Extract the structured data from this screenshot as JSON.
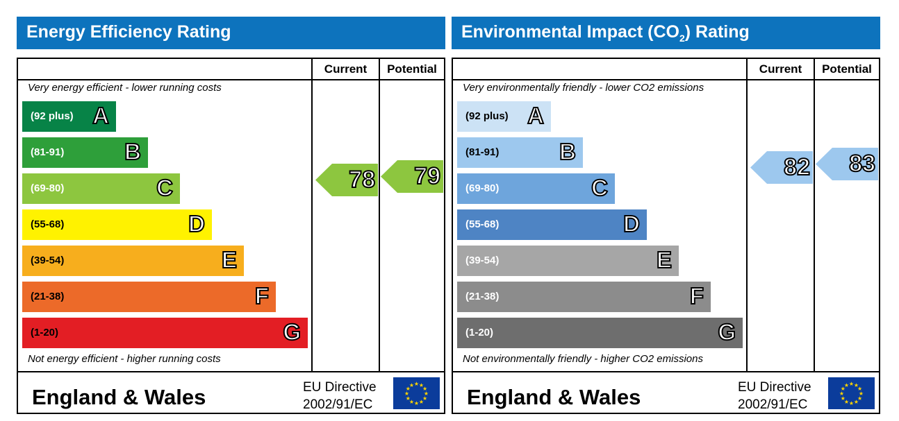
{
  "chart_data": [
    {
      "type": "bar",
      "title": "Energy Efficiency Rating",
      "columns": [
        "Current",
        "Potential"
      ],
      "top_note": "Very energy efficient - lower running costs",
      "bottom_note": "Not energy efficient - higher running costs",
      "bands": [
        {
          "range": "(92 plus)",
          "letter": "A",
          "color": "#078347"
        },
        {
          "range": "(81-91)",
          "letter": "B",
          "color": "#2e9f3a"
        },
        {
          "range": "(69-80)",
          "letter": "C",
          "color": "#8dc63f"
        },
        {
          "range": "(55-68)",
          "letter": "D",
          "color": "#fff200"
        },
        {
          "range": "(39-54)",
          "letter": "E",
          "color": "#f7ae1d"
        },
        {
          "range": "(21-38)",
          "letter": "F",
          "color": "#ec6a29"
        },
        {
          "range": "(1-20)",
          "letter": "G",
          "color": "#e31e24"
        }
      ],
      "current": 78,
      "potential": 79,
      "current_color": "#8dc63f",
      "potential_color": "#8dc63f",
      "country": "England & Wales",
      "directive": [
        "EU Directive",
        "2002/91/EC"
      ]
    },
    {
      "type": "bar",
      "title": "Environmental Impact (CO",
      "title_sub": "2",
      "title_end": ") Rating",
      "columns": [
        "Current",
        "Potential"
      ],
      "top_note": "Very environmentally friendly - lower CO2 emissions",
      "bottom_note": "Not environmentally friendly - higher CO2 emissions",
      "bands": [
        {
          "range": "(92 plus)",
          "letter": "A",
          "color": "#cce2f5"
        },
        {
          "range": "(81-91)",
          "letter": "B",
          "color": "#9dc8ee"
        },
        {
          "range": "(69-80)",
          "letter": "C",
          "color": "#6ea5dc"
        },
        {
          "range": "(55-68)",
          "letter": "D",
          "color": "#4e84c4"
        },
        {
          "range": "(39-54)",
          "letter": "E",
          "color": "#a6a6a6"
        },
        {
          "range": "(21-38)",
          "letter": "F",
          "color": "#8c8c8c"
        },
        {
          "range": "(1-20)",
          "letter": "G",
          "color": "#6e6e6e"
        }
      ],
      "current": 82,
      "potential": 83,
      "current_color": "#9dc8ee",
      "potential_color": "#9dc8ee",
      "country": "England & Wales",
      "directive": [
        "EU Directive",
        "2002/91/EC"
      ]
    }
  ]
}
